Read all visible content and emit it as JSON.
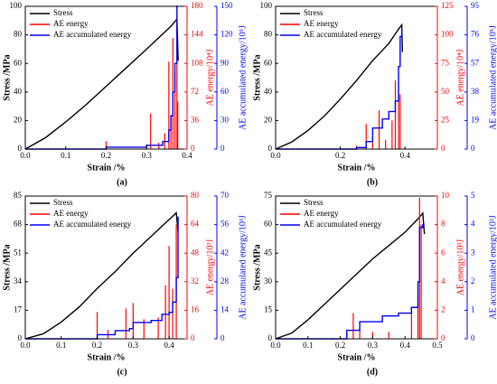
{
  "chart_data": [
    {
      "type": "line",
      "caption": "(a)",
      "xlabel": "Strain /%",
      "ylabel": "Stress /MPa",
      "y2label": "AE energy/10⁴J",
      "y3label": "AE accumulated energy/10⁵J",
      "xlim": [
        0,
        0.4
      ],
      "xticks": [
        {
          "value": 0,
          "label": "0.0"
        },
        0.1,
        0.2,
        0.3,
        0.4
      ],
      "ylim": [
        0,
        100
      ],
      "yticks": [
        0,
        20,
        40,
        60,
        80,
        100
      ],
      "y2lim": [
        0,
        180
      ],
      "y2ticks": [
        0,
        36,
        72,
        108,
        144,
        180
      ],
      "y3lim": [
        0,
        150
      ],
      "y3ticks": [
        0,
        30,
        60,
        90,
        120,
        150
      ],
      "series": [
        {
          "name": "Stress",
          "color": "#000000",
          "style": "line",
          "x": [
            0,
            0.05,
            0.1,
            0.15,
            0.2,
            0.25,
            0.3,
            0.33,
            0.36,
            0.375,
            0.378
          ],
          "values": [
            0,
            8,
            19,
            31,
            44,
            57,
            70,
            78,
            86,
            91,
            62
          ]
        },
        {
          "name": "AE energy",
          "color": "#ff0000",
          "style": "spikes",
          "axis": "y2",
          "x": [
            0.2,
            0.3,
            0.31,
            0.33,
            0.345,
            0.355,
            0.36,
            0.365,
            0.37,
            0.375,
            0.377
          ],
          "values": [
            10,
            6,
            45,
            8,
            20,
            110,
            40,
            140,
            95,
            168,
            60
          ]
        },
        {
          "name": "AE accumulated energy",
          "color": "#0000ff",
          "style": "step",
          "axis": "y3",
          "x": [
            0,
            0.2,
            0.3,
            0.34,
            0.355,
            0.36,
            0.365,
            0.37,
            0.375,
            0.378
          ],
          "values": [
            0,
            2,
            4,
            8,
            20,
            35,
            60,
            90,
            150,
            150
          ]
        }
      ]
    },
    {
      "type": "line",
      "caption": "(b)",
      "xlabel": "Strain /%",
      "ylabel": "Stress /MPa",
      "y2label": "AE energy/10⁴J",
      "y3label": "AE accumulated energy/10⁵J",
      "xlim": [
        0,
        0.5
      ],
      "xticks": [
        {
          "value": 0,
          "label": "0.0"
        },
        0.2,
        0.4
      ],
      "ylim": [
        0,
        100
      ],
      "yticks": [
        0,
        20,
        40,
        60,
        80,
        100
      ],
      "y2lim": [
        0,
        125
      ],
      "y2ticks": [
        0,
        25,
        50,
        75,
        100,
        125
      ],
      "y3lim": [
        0,
        95
      ],
      "y3ticks": [
        0,
        19,
        38,
        57,
        76,
        95
      ],
      "series": [
        {
          "name": "Stress",
          "color": "#000000",
          "style": "line",
          "x": [
            0,
            0.05,
            0.1,
            0.15,
            0.2,
            0.25,
            0.3,
            0.35,
            0.38,
            0.39,
            0.392
          ],
          "values": [
            0,
            5,
            13,
            23,
            35,
            48,
            62,
            74,
            84,
            87,
            68
          ]
        },
        {
          "name": "AE energy",
          "color": "#ff0000",
          "style": "spikes",
          "axis": "y2",
          "x": [
            0.25,
            0.28,
            0.3,
            0.32,
            0.34,
            0.36,
            0.37,
            0.38,
            0.385
          ],
          "values": [
            3,
            22,
            10,
            34,
            8,
            25,
            60,
            58,
            48
          ]
        },
        {
          "name": "AE accumulated energy",
          "color": "#0000ff",
          "style": "step",
          "axis": "y3",
          "x": [
            0,
            0.25,
            0.28,
            0.3,
            0.33,
            0.35,
            0.37,
            0.38,
            0.385,
            0.39
          ],
          "values": [
            0,
            1,
            5,
            14,
            20,
            25,
            32,
            55,
            75,
            80
          ]
        }
      ]
    },
    {
      "type": "line",
      "caption": "(c)",
      "xlabel": "Strain /%",
      "ylabel": "Stress /MPa",
      "y2label": "AE energy/10³J",
      "y3label": "AE accumulated energy/10³J",
      "xlim": [
        0,
        0.45
      ],
      "xticks": [
        {
          "value": 0,
          "label": "0.0"
        },
        0.1,
        0.2,
        0.3,
        0.4
      ],
      "ylim": [
        0,
        85
      ],
      "yticks": [
        0,
        17,
        34,
        51,
        68,
        85
      ],
      "y2lim": [
        0,
        80
      ],
      "y2ticks": [
        0,
        16,
        32,
        48,
        64,
        80
      ],
      "y3lim": [
        0,
        70
      ],
      "y3ticks": [
        0,
        14,
        28,
        42,
        56,
        70
      ],
      "series": [
        {
          "name": "Stress",
          "color": "#000000",
          "style": "line",
          "x": [
            0,
            0.05,
            0.1,
            0.15,
            0.2,
            0.25,
            0.3,
            0.35,
            0.4,
            0.42,
            0.425
          ],
          "values": [
            0,
            3,
            10,
            19,
            30,
            40,
            51,
            61,
            71,
            75,
            64
          ]
        },
        {
          "name": "AE energy",
          "color": "#ff0000",
          "style": "spikes",
          "axis": "y2",
          "x": [
            0.2,
            0.23,
            0.28,
            0.3,
            0.33,
            0.37,
            0.39,
            0.4,
            0.41,
            0.42
          ],
          "values": [
            15,
            5,
            17,
            20,
            11,
            12,
            30,
            52,
            28,
            64
          ]
        },
        {
          "name": "AE accumulated energy",
          "color": "#0000ff",
          "style": "step",
          "axis": "y3",
          "x": [
            0,
            0.2,
            0.25,
            0.29,
            0.3,
            0.35,
            0.38,
            0.4,
            0.41,
            0.42,
            0.425
          ],
          "values": [
            0,
            2,
            4,
            5,
            8,
            9,
            12,
            13,
            18,
            30,
            60
          ]
        }
      ]
    },
    {
      "type": "line",
      "caption": "(d)",
      "xlabel": "Strain /%",
      "ylabel": "Stress /MPa",
      "y2label": "AE energy/10³J",
      "y3label": "AE accumulated energy/10³J",
      "xlim": [
        0,
        0.5
      ],
      "xticks": [
        {
          "value": 0,
          "label": "0.0"
        },
        0.1,
        0.2,
        0.3,
        0.4,
        0.5
      ],
      "ylim": [
        0,
        75
      ],
      "yticks": [
        0,
        15,
        30,
        45,
        60,
        75
      ],
      "y2lim": [
        0,
        10
      ],
      "y2ticks": [
        0,
        2,
        4,
        6,
        8,
        10
      ],
      "y3lim": [
        0,
        5
      ],
      "y3ticks": [
        0,
        1,
        2,
        3,
        4,
        5
      ],
      "series": [
        {
          "name": "Stress",
          "color": "#000000",
          "style": "line",
          "x": [
            0,
            0.05,
            0.1,
            0.15,
            0.2,
            0.25,
            0.3,
            0.35,
            0.4,
            0.44,
            0.455,
            0.46
          ],
          "values": [
            0,
            3,
            10,
            18,
            26,
            34,
            42,
            49,
            56,
            63,
            66,
            55
          ]
        },
        {
          "name": "AE energy",
          "color": "#ff0000",
          "style": "spikes",
          "axis": "y2",
          "x": [
            0.22,
            0.24,
            0.26,
            0.3,
            0.35,
            0.42,
            0.44,
            0.445,
            0.45
          ],
          "values": [
            0.4,
            1.8,
            0.8,
            0.5,
            0.5,
            2.2,
            3,
            9.9,
            8
          ]
        },
        {
          "name": "AE accumulated energy",
          "color": "#0000ff",
          "style": "step",
          "axis": "y3",
          "x": [
            0,
            0.22,
            0.26,
            0.33,
            0.38,
            0.42,
            0.44,
            0.445,
            0.455,
            0.46
          ],
          "values": [
            0,
            0.3,
            0.6,
            0.8,
            0.9,
            1.1,
            2,
            3.9,
            4,
            4
          ]
        }
      ]
    }
  ]
}
